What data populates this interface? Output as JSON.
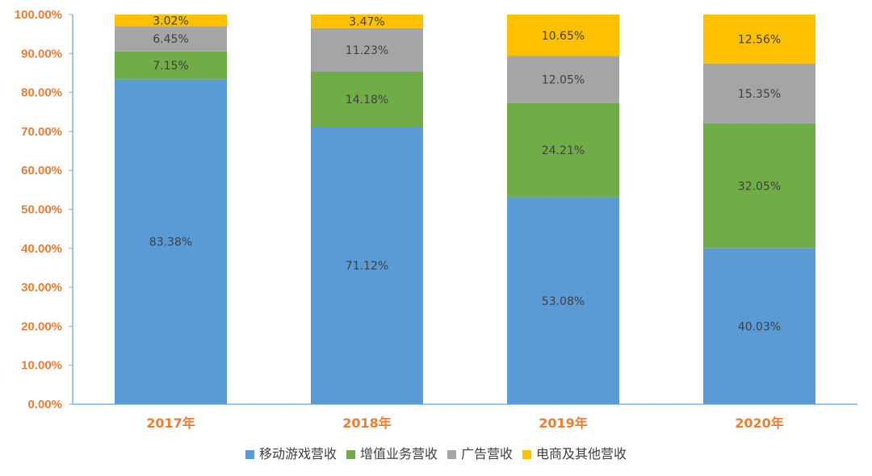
{
  "chart_data": {
    "type": "bar",
    "stacked": true,
    "categories": [
      "2017年",
      "2018年",
      "2019年",
      "2020年"
    ],
    "series": [
      {
        "name": "移动游戏营收",
        "color": "#5B9BD5",
        "values": [
          83.38,
          71.12,
          53.08,
          40.03
        ],
        "labels": [
          "83.38%",
          "71.12%",
          "53.08%",
          "40.03%"
        ]
      },
      {
        "name": "增值业务营收",
        "color": "#70AD47",
        "values": [
          7.15,
          14.18,
          24.21,
          32.05
        ],
        "labels": [
          "7.15%",
          "14.18%",
          "24.21%",
          "32.05%"
        ]
      },
      {
        "name": "广告营收",
        "color": "#A5A5A5",
        "values": [
          6.45,
          11.23,
          12.05,
          15.35
        ],
        "labels": [
          "6.45%",
          "11.23%",
          "12.05%",
          "15.35%"
        ]
      },
      {
        "name": "电商及其他营收",
        "color": "#FFC000",
        "values": [
          3.02,
          3.47,
          10.65,
          12.56
        ],
        "labels": [
          "3.02%",
          "3.47%",
          "10.65%",
          "12.56%"
        ]
      }
    ],
    "ylim": [
      0,
      100
    ],
    "yticks": [
      "0.00%",
      "10.00%",
      "20.00%",
      "30.00%",
      "40.00%",
      "50.00%",
      "60.00%",
      "70.00%",
      "80.00%",
      "90.00%",
      "100.00%"
    ],
    "title": "",
    "xlabel": "",
    "ylabel": "",
    "grid": false,
    "legend_position": "bottom-center",
    "tick_color": "#ED7D31",
    "axis_color": "#7EB3DE"
  }
}
